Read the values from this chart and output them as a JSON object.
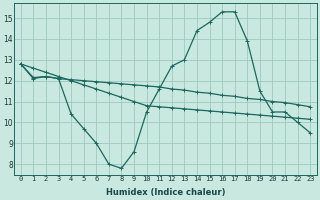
{
  "bg_color": "#c8e8e0",
  "grid_color": "#a0c8c0",
  "line_color": "#1a6860",
  "xlabel": "Humidex (Indice chaleur)",
  "xlim": [
    -0.5,
    23.5
  ],
  "ylim": [
    7.5,
    15.7
  ],
  "yticks": [
    8,
    9,
    10,
    11,
    12,
    13,
    14,
    15
  ],
  "xticks": [
    0,
    1,
    2,
    3,
    4,
    5,
    6,
    7,
    8,
    9,
    10,
    11,
    12,
    13,
    14,
    15,
    16,
    17,
    18,
    19,
    20,
    21,
    22,
    23
  ],
  "curve1_x": [
    0,
    1,
    2,
    3,
    4,
    5,
    6,
    7,
    8,
    9,
    10,
    11,
    12,
    13,
    14,
    15,
    16,
    17,
    18,
    19,
    20,
    21,
    22,
    23
  ],
  "curve1_y": [
    12.8,
    12.1,
    12.2,
    12.1,
    10.4,
    9.7,
    9.0,
    8.0,
    7.8,
    8.6,
    10.5,
    11.6,
    12.7,
    13.0,
    14.4,
    14.8,
    15.3,
    15.3,
    13.9,
    11.5,
    10.5,
    10.5,
    10.0,
    9.5
  ],
  "curve2_x": [
    0,
    1,
    2,
    3,
    4,
    5,
    6,
    7,
    8,
    9,
    10,
    11,
    12,
    13,
    14,
    15,
    16,
    17,
    18,
    19,
    20,
    21,
    22,
    23
  ],
  "curve2_y": [
    12.8,
    12.15,
    12.2,
    12.1,
    12.05,
    12.0,
    11.95,
    11.9,
    11.85,
    11.8,
    11.75,
    11.7,
    11.6,
    11.55,
    11.45,
    11.4,
    11.3,
    11.25,
    11.15,
    11.1,
    11.0,
    10.95,
    10.85,
    10.75
  ],
  "curve3_x": [
    0,
    1,
    2,
    3,
    4,
    5,
    6,
    7,
    8,
    9,
    10,
    11,
    12,
    13,
    14,
    15,
    16,
    17,
    18,
    19,
    20,
    21,
    22,
    23
  ],
  "curve3_y": [
    12.8,
    12.6,
    12.4,
    12.2,
    12.0,
    11.8,
    11.6,
    11.4,
    11.2,
    11.0,
    10.8,
    10.75,
    10.7,
    10.65,
    10.6,
    10.55,
    10.5,
    10.45,
    10.4,
    10.35,
    10.3,
    10.25,
    10.2,
    10.15
  ],
  "xlabel_fontsize": 6,
  "tick_fontsize": 5,
  "ytick_fontsize": 5.5
}
